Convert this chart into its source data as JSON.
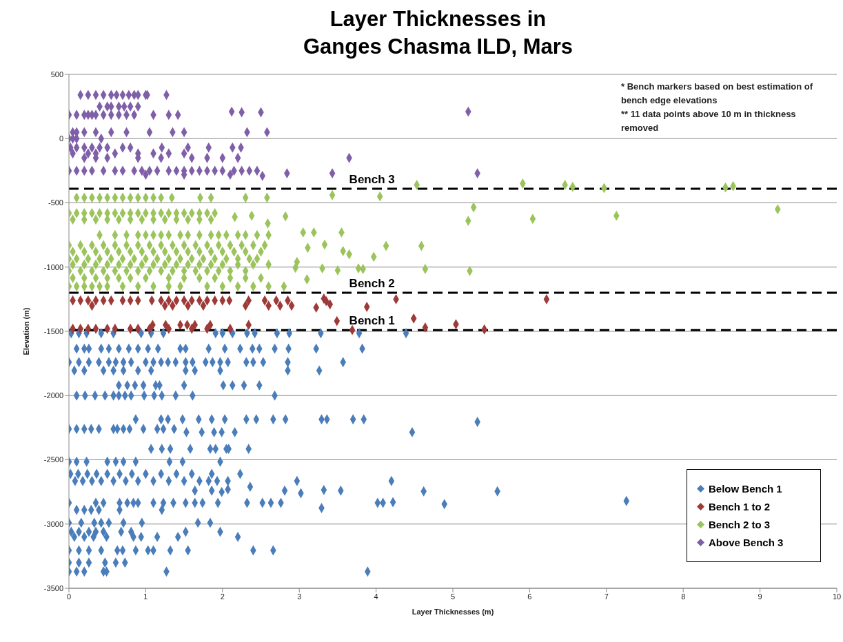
{
  "chart_data": {
    "type": "scatter",
    "title": "Layer Thicknesses in Ganges Chasma ILD, Mars",
    "xlabel": "Layer Thicknesses (m)",
    "ylabel": "Elevation (m)",
    "annotations": [
      "* Bench markers based on best estimation of bench edge elevations",
      "** 11 data points above 10 m in thickness removed"
    ],
    "xlim": [
      0,
      10
    ],
    "xticks": [
      0,
      1,
      2,
      3,
      4,
      5,
      6,
      7,
      8,
      9,
      10
    ],
    "ylim": [
      -3500,
      500
    ],
    "yticks": [
      -3500,
      -3000,
      -2500,
      -2000,
      -1500,
      -1000,
      -500,
      0,
      500
    ],
    "grid": "y",
    "legend": "bottom right",
    "marker": "diamond",
    "ref_lines": [
      {
        "axis": "y",
        "value": -390,
        "label": "Bench 3",
        "color": "#000000",
        "line_style": "dashed"
      },
      {
        "axis": "y",
        "value": -1200,
        "label": "Bench 2",
        "color": "#000000",
        "line_style": "dashed"
      },
      {
        "axis": "y",
        "value": -1490,
        "label": "Bench 1",
        "color": "#000000",
        "line_style": "dashed"
      }
    ],
    "series": [
      {
        "name": "Below Bench 1",
        "color": "#4a7dba",
        "x": [
          0.03,
          0.13,
          0.23,
          0.42,
          0.58,
          0.94,
          1.07,
          1.23,
          1.91,
          2.0,
          2.13,
          2.32,
          2.42,
          2.71,
          2.87,
          3.28,
          3.78,
          4.39,
          0.1,
          0.2,
          0.26,
          0.42,
          0.52,
          0.65,
          0.78,
          0.9,
          1.03,
          1.16,
          1.45,
          1.52,
          1.82,
          2.03,
          2.23,
          2.39,
          2.48,
          2.68,
          2.86,
          3.22,
          3.82,
          0.0,
          0.13,
          0.26,
          0.39,
          0.52,
          0.61,
          0.71,
          0.81,
          1.0,
          1.1,
          1.2,
          1.29,
          1.39,
          1.52,
          1.61,
          1.78,
          1.87,
          1.97,
          2.07,
          2.31,
          2.4,
          2.53,
          2.85,
          3.57,
          0.07,
          0.2,
          0.45,
          0.58,
          0.71,
          0.9,
          1.07,
          1.52,
          1.64,
          1.97,
          2.85,
          3.26,
          0.65,
          0.76,
          0.86,
          0.97,
          1.13,
          1.18,
          1.5,
          2.01,
          2.13,
          2.28,
          2.48,
          0.1,
          0.21,
          0.34,
          0.47,
          0.58,
          0.65,
          0.73,
          0.81,
          0.98,
          1.11,
          1.21,
          1.39,
          1.61,
          2.68,
          0.87,
          1.2,
          1.29,
          1.48,
          1.69,
          1.86,
          2.03,
          2.31,
          2.44,
          2.66,
          2.82,
          3.29,
          3.36,
          3.7,
          3.84,
          5.32,
          0.0,
          0.1,
          0.2,
          0.29,
          0.39,
          0.58,
          0.63,
          0.71,
          0.79,
          0.97,
          1.15,
          1.23,
          1.37,
          1.53,
          1.73,
          1.89,
          1.99,
          2.16,
          4.47,
          1.07,
          1.21,
          1.32,
          1.58,
          1.84,
          1.91,
          2.05,
          2.08,
          2.34,
          0.0,
          0.1,
          0.23,
          0.5,
          0.61,
          0.71,
          0.87,
          1.31,
          1.48,
          1.97,
          0.02,
          0.12,
          0.24,
          0.36,
          0.5,
          0.66,
          0.82,
          1.0,
          1.2,
          1.4,
          1.6,
          1.86,
          2.23,
          0.08,
          0.18,
          0.3,
          0.42,
          0.58,
          0.74,
          0.9,
          1.1,
          1.3,
          1.5,
          1.7,
          1.82,
          1.93,
          2.07,
          2.97,
          4.2,
          1.64,
          1.86,
          1.99,
          2.07,
          2.36,
          2.81,
          3.02,
          3.32,
          3.54,
          4.62,
          5.58,
          0.0,
          0.35,
          0.45,
          0.66,
          0.76,
          0.84,
          0.9,
          1.1,
          1.23,
          1.36,
          1.52,
          1.64,
          1.74,
          1.94,
          2.32,
          2.52,
          2.63,
          2.76,
          4.02,
          4.09,
          4.22,
          4.89,
          7.26,
          3.29,
          0.1,
          0.2,
          0.29,
          0.39,
          0.66,
          1.21,
          0.0,
          0.16,
          0.33,
          0.42,
          0.52,
          0.71,
          0.95,
          1.68,
          1.84,
          0.03,
          0.13,
          0.26,
          0.35,
          0.45,
          0.68,
          0.81,
          1.52,
          1.97,
          0.07,
          0.2,
          0.32,
          0.49,
          0.84,
          0.94,
          1.15,
          1.42,
          2.2,
          0.0,
          0.13,
          0.26,
          0.42,
          0.63,
          0.7,
          0.87,
          1.03,
          1.1,
          1.32,
          1.55,
          2.4,
          2.66,
          0.0,
          0.13,
          0.26,
          0.47,
          0.61,
          0.73,
          0.0,
          0.1,
          0.2,
          0.45,
          0.49,
          1.27,
          3.89
        ],
        "values": [
          -1515,
          -1515,
          -1515,
          -1515,
          -1515,
          -1515,
          -1515,
          -1515,
          -1515,
          -1515,
          -1515,
          -1515,
          -1515,
          -1515,
          -1515,
          -1515,
          -1515,
          -1515,
          -1635,
          -1635,
          -1635,
          -1635,
          -1635,
          -1635,
          -1635,
          -1635,
          -1635,
          -1635,
          -1635,
          -1635,
          -1635,
          -1635,
          -1635,
          -1635,
          -1635,
          -1635,
          -1635,
          -1635,
          -1635,
          -1740,
          -1740,
          -1740,
          -1740,
          -1740,
          -1740,
          -1740,
          -1740,
          -1740,
          -1740,
          -1740,
          -1740,
          -1740,
          -1740,
          -1740,
          -1740,
          -1740,
          -1740,
          -1740,
          -1740,
          -1740,
          -1740,
          -1740,
          -1740,
          -1805,
          -1805,
          -1805,
          -1805,
          -1805,
          -1805,
          -1805,
          -1805,
          -1805,
          -1805,
          -1805,
          -1805,
          -1920,
          -1920,
          -1920,
          -1920,
          -1920,
          -1920,
          -1920,
          -1920,
          -1920,
          -1920,
          -1920,
          -2000,
          -2000,
          -2000,
          -2000,
          -2000,
          -2000,
          -2000,
          -2000,
          -2000,
          -2000,
          -2000,
          -2000,
          -2000,
          -2000,
          -2185,
          -2185,
          -2185,
          -2185,
          -2185,
          -2185,
          -2185,
          -2185,
          -2185,
          -2185,
          -2185,
          -2185,
          -2185,
          -2185,
          -2185,
          -2205,
          -2260,
          -2260,
          -2260,
          -2260,
          -2260,
          -2260,
          -2260,
          -2260,
          -2260,
          -2260,
          -2260,
          -2260,
          -2260,
          -2285,
          -2285,
          -2285,
          -2285,
          -2285,
          -2285,
          -2415,
          -2415,
          -2415,
          -2415,
          -2415,
          -2415,
          -2415,
          -2415,
          -2415,
          -2515,
          -2515,
          -2515,
          -2515,
          -2515,
          -2515,
          -2515,
          -2515,
          -2515,
          -2515,
          -2610,
          -2610,
          -2610,
          -2610,
          -2610,
          -2610,
          -2610,
          -2610,
          -2610,
          -2610,
          -2610,
          -2610,
          -2610,
          -2665,
          -2665,
          -2665,
          -2665,
          -2665,
          -2665,
          -2665,
          -2665,
          -2665,
          -2665,
          -2665,
          -2665,
          -2665,
          -2665,
          -2665,
          -2665,
          -2740,
          -2740,
          -2750,
          -2730,
          -2710,
          -2740,
          -2760,
          -2735,
          -2740,
          -2745,
          -2745,
          -2835,
          -2835,
          -2835,
          -2835,
          -2835,
          -2835,
          -2835,
          -2835,
          -2835,
          -2835,
          -2835,
          -2835,
          -2835,
          -2835,
          -2835,
          -2835,
          -2835,
          -2835,
          -2835,
          -2835,
          -2830,
          -2845,
          -2820,
          -2875,
          -2890,
          -2890,
          -2890,
          -2890,
          -2890,
          -2890,
          -2990,
          -2990,
          -2990,
          -2990,
          -2990,
          -2990,
          -2990,
          -2990,
          -2990,
          -3060,
          -3060,
          -3060,
          -3060,
          -3060,
          -3060,
          -3060,
          -3060,
          -3060,
          -3100,
          -3100,
          -3100,
          -3100,
          -3100,
          -3100,
          -3100,
          -3100,
          -3100,
          -3205,
          -3205,
          -3205,
          -3205,
          -3205,
          -3205,
          -3205,
          -3205,
          -3205,
          -3205,
          -3205,
          -3205,
          -3205,
          -3300,
          -3300,
          -3300,
          -3300,
          -3300,
          -3300,
          -3370,
          -3370,
          -3370,
          -3370,
          -3370,
          -3370,
          -3370
        ]
      },
      {
        "name": "Bench 1 to 2",
        "color": "#9e3a38",
        "x": [
          0.05,
          0.15,
          0.25,
          0.35,
          0.45,
          0.55,
          0.7,
          0.8,
          0.9,
          1.08,
          1.2,
          1.3,
          1.4,
          1.5,
          1.6,
          1.7,
          1.8,
          1.9,
          2.0,
          2.09,
          2.34,
          2.55,
          2.7,
          2.85,
          3.32,
          4.26,
          6.22,
          0.3,
          1.25,
          1.35,
          1.55,
          1.75,
          2.3,
          2.6,
          2.75,
          2.9,
          3.35,
          3.4,
          3.22,
          3.88,
          1.09,
          1.26,
          1.45,
          1.54,
          1.64,
          1.84,
          2.34,
          3.49,
          4.49,
          5.04,
          0.05,
          0.15,
          0.25,
          0.35,
          0.5,
          0.6,
          0.8,
          0.9,
          1.05,
          1.3,
          1.6,
          1.8,
          2.1,
          3.69,
          4.64,
          5.41
        ],
        "values": [
          -1260,
          -1260,
          -1260,
          -1260,
          -1260,
          -1260,
          -1260,
          -1260,
          -1260,
          -1260,
          -1260,
          -1260,
          -1260,
          -1260,
          -1260,
          -1260,
          -1260,
          -1260,
          -1260,
          -1260,
          -1260,
          -1260,
          -1260,
          -1260,
          -1245,
          -1250,
          -1250,
          -1300,
          -1300,
          -1300,
          -1300,
          -1300,
          -1300,
          -1300,
          -1300,
          -1300,
          -1265,
          -1290,
          -1315,
          -1310,
          -1450,
          -1450,
          -1450,
          -1450,
          -1450,
          -1450,
          -1450,
          -1420,
          -1400,
          -1445,
          -1480,
          -1480,
          -1480,
          -1480,
          -1480,
          -1480,
          -1480,
          -1480,
          -1480,
          -1480,
          -1480,
          -1480,
          -1480,
          -1490,
          -1470,
          -1485
        ]
      },
      {
        "name": "Bench 2 to 3",
        "color": "#9bc45c",
        "x": [
          0.1,
          0.2,
          0.3,
          0.4,
          0.5,
          0.6,
          0.7,
          0.8,
          0.9,
          1.0,
          1.1,
          1.2,
          1.34,
          1.71,
          1.85,
          2.3,
          2.58,
          3.43,
          4.05,
          4.53,
          5.91,
          6.46,
          6.56,
          6.97,
          8.55,
          8.65,
          5.27,
          5.2,
          6.04,
          7.13,
          9.23,
          0.0,
          0.1,
          0.2,
          0.3,
          0.4,
          0.5,
          0.6,
          0.7,
          0.8,
          0.9,
          1.0,
          1.1,
          1.2,
          1.3,
          1.4,
          1.5,
          1.6,
          1.7,
          1.8,
          1.9,
          2.16,
          2.38,
          2.82,
          0.05,
          0.2,
          0.35,
          0.5,
          0.65,
          0.8,
          0.95,
          1.1,
          1.25,
          1.4,
          1.55,
          1.7,
          1.85,
          2.59,
          0.4,
          0.6,
          0.75,
          0.9,
          1.0,
          1.1,
          1.2,
          1.3,
          1.45,
          1.55,
          1.7,
          1.85,
          1.95,
          2.05,
          2.2,
          2.3,
          2.45,
          2.6,
          3.05,
          3.19,
          3.55,
          0.0,
          0.15,
          0.3,
          0.45,
          0.6,
          0.75,
          0.9,
          1.05,
          1.2,
          1.35,
          1.5,
          1.65,
          1.8,
          1.95,
          2.1,
          2.25,
          2.4,
          2.55,
          3.11,
          3.33,
          3.57,
          3.65,
          3.97,
          4.13,
          4.59,
          0.05,
          0.2,
          0.35,
          0.5,
          0.65,
          0.8,
          0.95,
          1.1,
          1.25,
          1.4,
          1.55,
          1.7,
          1.85,
          2.0,
          2.15,
          2.3,
          2.5,
          0.0,
          0.1,
          0.25,
          0.4,
          0.55,
          0.7,
          0.85,
          1.0,
          1.15,
          1.3,
          1.45,
          1.6,
          1.75,
          1.9,
          2.05,
          2.2,
          2.35,
          2.45,
          2.97,
          0.05,
          0.2,
          0.35,
          0.5,
          0.65,
          0.8,
          0.95,
          1.1,
          1.25,
          1.4,
          1.55,
          1.7,
          1.85,
          2.0,
          2.2,
          2.4,
          2.6,
          0.0,
          0.15,
          0.3,
          0.45,
          0.6,
          0.75,
          0.9,
          1.05,
          1.2,
          1.35,
          1.5,
          1.65,
          1.8,
          1.95,
          2.1,
          2.3,
          2.95,
          3.3,
          3.5,
          3.77,
          3.83,
          4.64,
          5.22,
          0.05,
          0.2,
          0.35,
          0.5,
          0.65,
          0.8,
          1.0,
          1.3,
          1.5,
          1.7,
          1.9,
          2.1,
          2.3,
          2.5,
          3.1,
          0.0,
          0.1,
          0.2,
          0.3,
          0.4,
          0.5,
          0.7,
          0.9,
          1.1,
          1.3,
          1.45,
          1.8,
          2.0,
          2.2,
          2.4,
          2.6,
          2.8
        ],
        "values": [
          -460,
          -460,
          -460,
          -460,
          -460,
          -460,
          -460,
          -460,
          -460,
          -460,
          -460,
          -460,
          -460,
          -460,
          -460,
          -460,
          -460,
          -440,
          -450,
          -360,
          -350,
          -360,
          -375,
          -385,
          -380,
          -370,
          -535,
          -640,
          -625,
          -600,
          -550,
          -580,
          -580,
          -580,
          -580,
          -580,
          -580,
          -580,
          -580,
          -580,
          -580,
          -580,
          -580,
          -580,
          -580,
          -580,
          -580,
          -580,
          -580,
          -580,
          -580,
          -610,
          -600,
          -605,
          -630,
          -630,
          -630,
          -630,
          -630,
          -630,
          -630,
          -630,
          -630,
          -630,
          -630,
          -630,
          -630,
          -660,
          -750,
          -750,
          -750,
          -750,
          -750,
          -750,
          -750,
          -750,
          -750,
          -750,
          -750,
          -750,
          -750,
          -750,
          -750,
          -750,
          -750,
          -750,
          -730,
          -730,
          -730,
          -830,
          -830,
          -830,
          -830,
          -830,
          -830,
          -830,
          -830,
          -830,
          -830,
          -830,
          -830,
          -830,
          -830,
          -830,
          -830,
          -830,
          -830,
          -850,
          -825,
          -875,
          -900,
          -920,
          -835,
          -835,
          -880,
          -880,
          -880,
          -880,
          -880,
          -880,
          -880,
          -880,
          -880,
          -880,
          -880,
          -880,
          -880,
          -880,
          -880,
          -880,
          -880,
          -935,
          -935,
          -935,
          -935,
          -935,
          -935,
          -935,
          -935,
          -935,
          -935,
          -935,
          -935,
          -935,
          -935,
          -935,
          -935,
          -935,
          -935,
          -960,
          -980,
          -980,
          -980,
          -980,
          -980,
          -980,
          -980,
          -980,
          -980,
          -980,
          -980,
          -980,
          -980,
          -980,
          -980,
          -980,
          -980,
          -1030,
          -1030,
          -1030,
          -1030,
          -1030,
          -1030,
          -1030,
          -1030,
          -1030,
          -1030,
          -1030,
          -1030,
          -1030,
          -1030,
          -1030,
          -1030,
          -1005,
          -1010,
          -1025,
          -1010,
          -1015,
          -1015,
          -1030,
          -1085,
          -1085,
          -1085,
          -1085,
          -1085,
          -1085,
          -1085,
          -1085,
          -1085,
          -1085,
          -1085,
          -1085,
          -1085,
          -1085,
          -1095,
          -1150,
          -1150,
          -1150,
          -1150,
          -1150,
          -1150,
          -1150,
          -1150,
          -1150,
          -1150,
          -1150,
          -1150,
          -1150,
          -1150,
          -1150,
          -1150,
          -1150
        ]
      },
      {
        "name": "Above Bench 3",
        "color": "#7f5fa8",
        "x": [
          0.15,
          0.25,
          0.35,
          0.45,
          0.55,
          0.62,
          0.7,
          0.78,
          0.85,
          0.9,
          1.0,
          1.02,
          1.27,
          0.4,
          0.5,
          0.55,
          0.65,
          0.72,
          0.8,
          0.9,
          0.0,
          0.1,
          0.2,
          0.25,
          0.3,
          0.35,
          0.45,
          0.55,
          0.65,
          0.75,
          0.85,
          1.1,
          1.3,
          1.42,
          2.12,
          2.25,
          2.5,
          0.05,
          0.1,
          0.2,
          0.35,
          0.55,
          0.75,
          1.05,
          1.35,
          1.5,
          2.32,
          2.58,
          0.0,
          0.05,
          0.1,
          0.42,
          0.02,
          0.1,
          0.2,
          0.3,
          0.4,
          0.5,
          0.7,
          0.8,
          1.21,
          1.55,
          1.82,
          2.13,
          2.24,
          0.05,
          0.25,
          0.35,
          0.6,
          0.9,
          1.1,
          1.3,
          1.5,
          0.2,
          0.35,
          0.5,
          0.9,
          1.2,
          1.6,
          1.8,
          2.0,
          2.2,
          3.65,
          0.0,
          0.1,
          0.2,
          0.3,
          0.45,
          0.6,
          0.7,
          0.85,
          0.95,
          1.05,
          1.15,
          1.3,
          1.4,
          1.5,
          1.6,
          1.7,
          1.8,
          1.9,
          2.0,
          2.15,
          2.25,
          2.35,
          2.45,
          2.84,
          3.43,
          1.0,
          1.5,
          2.1,
          2.52,
          5.32,
          5.2
        ],
        "values": [
          340,
          340,
          340,
          340,
          340,
          340,
          340,
          340,
          340,
          340,
          340,
          340,
          340,
          250,
          250,
          250,
          250,
          250,
          250,
          250,
          185,
          185,
          185,
          185,
          185,
          185,
          185,
          185,
          185,
          185,
          185,
          185,
          185,
          185,
          210,
          205,
          205,
          50,
          50,
          50,
          50,
          50,
          50,
          50,
          50,
          50,
          50,
          50,
          0,
          0,
          0,
          0,
          -70,
          -70,
          -70,
          -70,
          -70,
          -70,
          -70,
          -70,
          -70,
          -70,
          -70,
          -70,
          -70,
          -115,
          -115,
          -115,
          -115,
          -115,
          -115,
          -115,
          -115,
          -150,
          -150,
          -150,
          -150,
          -150,
          -150,
          -150,
          -150,
          -150,
          -150,
          -250,
          -250,
          -250,
          -250,
          -250,
          -250,
          -250,
          -250,
          -250,
          -250,
          -250,
          -250,
          -250,
          -250,
          -250,
          -250,
          -250,
          -250,
          -250,
          -250,
          -250,
          -250,
          -250,
          -270,
          -270,
          -280,
          -280,
          -280,
          -290,
          -270,
          210
        ]
      }
    ]
  }
}
